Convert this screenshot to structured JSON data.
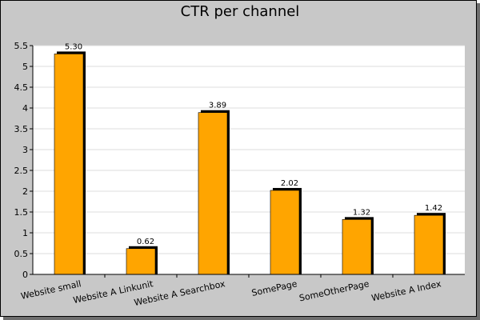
{
  "chart_data": {
    "type": "bar",
    "title": "CTR per channel",
    "xlabel": "",
    "ylabel": "",
    "categories": [
      "Website small",
      "Website A Linkunit",
      "Website A Searchbox",
      "SomePage",
      "SomeOtherPage",
      "Website A Index"
    ],
    "values": [
      5.3,
      0.62,
      3.89,
      2.02,
      1.32,
      1.42
    ],
    "data_labels": [
      "5.30",
      "0.62",
      "3.89",
      "2.02",
      "1.32",
      "1.42"
    ],
    "ylim": [
      0,
      5.5
    ],
    "yticks": [
      "0",
      "0.5",
      "1",
      "1.5",
      "2",
      "2.5",
      "3",
      "3.5",
      "4",
      "4.5",
      "5",
      "5.5"
    ],
    "grid": true,
    "legend": "none",
    "colors": {
      "bar": "#ffa500",
      "bar_shadow": "#000000",
      "background": "#c8c8c8",
      "plot_background": "#ffffff",
      "grid": "#dcdcdc"
    }
  }
}
